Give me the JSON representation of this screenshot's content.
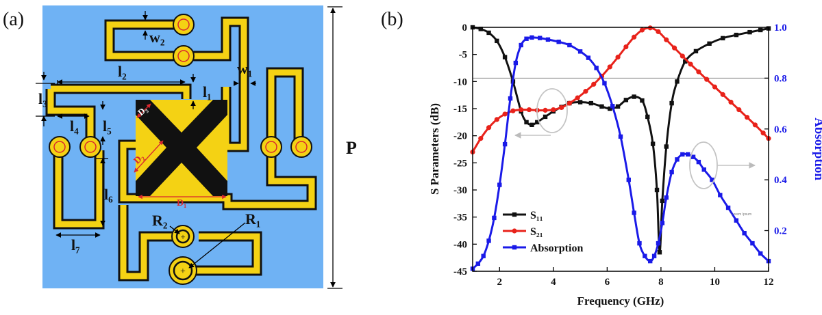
{
  "panel_a": {
    "label": "(a)",
    "dims": {
      "w2": "w₂",
      "w1": "w₁",
      "l1": "l₁",
      "l2": "l₂",
      "l3": "l₃",
      "l4": "l₄",
      "l5": "l₅",
      "l6": "l₆",
      "l7": "l₇",
      "D1": "D₁",
      "D2": "D₂",
      "D3": "D₃",
      "R1": "R₁",
      "R2": "R₂",
      "P": "P"
    },
    "colors": {
      "substrate": "#6fb2f4",
      "copper": "#f4d214",
      "dielectric": "#111111",
      "dim_red": "#d9272e"
    }
  },
  "panel_b": {
    "label": "(b)",
    "watermark": "Lorem Ipsum"
  },
  "chart_data": {
    "type": "line",
    "xlabel": "Frequency (GHz)",
    "ylabel": "S Parameters (dB)",
    "ylabel_right": "Absorption",
    "xlim": [
      1,
      12
    ],
    "ylim": [
      -45,
      0
    ],
    "ylim_right": [
      0.04,
      1.0
    ],
    "x_ticks": [
      2,
      4,
      6,
      8,
      10,
      12
    ],
    "y_ticks": [
      0,
      -5,
      -10,
      -15,
      -20,
      -25,
      -30,
      -35,
      -40,
      -45
    ],
    "y_ticks_right": [
      0.2,
      0.4,
      0.6,
      0.8,
      1.0
    ],
    "reference_line": {
      "axis": "right",
      "value": 0.8
    },
    "series": [
      {
        "name": "S₁₁",
        "axis": "left",
        "color": "#111111",
        "marker": "square",
        "x": [
          1,
          1.3,
          1.6,
          1.9,
          2.2,
          2.5,
          2.8,
          3.0,
          3.2,
          3.4,
          3.7,
          4.0,
          4.3,
          4.6,
          5.0,
          5.4,
          5.8,
          6.1,
          6.4,
          6.7,
          7.0,
          7.3,
          7.5,
          7.7,
          7.85,
          7.95,
          8.05,
          8.2,
          8.4,
          8.6,
          8.9,
          9.3,
          9.8,
          10.3,
          10.8,
          11.3,
          11.7,
          12
        ],
        "values": [
          0,
          -0.3,
          -1.0,
          -2.5,
          -5.5,
          -10,
          -15.5,
          -17.5,
          -18,
          -17.5,
          -16.5,
          -15.5,
          -14.7,
          -14,
          -13.8,
          -14,
          -14.6,
          -15,
          -14.6,
          -13.4,
          -12.8,
          -13.5,
          -16.5,
          -21.5,
          -30,
          -41.5,
          -32,
          -22,
          -14,
          -10,
          -6.3,
          -4.4,
          -3,
          -2,
          -1.4,
          -0.9,
          -0.5,
          -0.2
        ]
      },
      {
        "name": "S₂₁",
        "axis": "left",
        "color": "#e8221a",
        "marker": "circle",
        "x": [
          1,
          1.3,
          1.6,
          1.9,
          2.2,
          2.5,
          2.8,
          3.1,
          3.4,
          3.7,
          4.0,
          4.3,
          4.6,
          4.9,
          5.2,
          5.5,
          5.8,
          6.1,
          6.4,
          6.7,
          7.0,
          7.3,
          7.6,
          7.9,
          8.2,
          8.5,
          8.8,
          9.1,
          9.4,
          9.7,
          10.0,
          10.3,
          10.6,
          10.9,
          11.2,
          11.5,
          11.8,
          12
        ],
        "values": [
          -23,
          -20.5,
          -18.5,
          -17,
          -16,
          -15.4,
          -15.2,
          -15.2,
          -15.3,
          -15.3,
          -15.2,
          -14.8,
          -14,
          -13,
          -11.8,
          -10.5,
          -9,
          -7.3,
          -5.5,
          -3.6,
          -1.8,
          -0.5,
          -0.1,
          -0.8,
          -2.3,
          -3.8,
          -5.3,
          -6.8,
          -8.2,
          -9.6,
          -11,
          -12.4,
          -13.8,
          -15.2,
          -16.6,
          -18,
          -19.5,
          -20.5
        ]
      },
      {
        "name": "Absorption",
        "axis": "right",
        "color": "#1a1ae8",
        "marker": "square",
        "x": [
          1,
          1.2,
          1.4,
          1.6,
          1.8,
          2.0,
          2.2,
          2.4,
          2.6,
          2.8,
          3.0,
          3.2,
          3.5,
          3.8,
          4.2,
          4.6,
          5.0,
          5.3,
          5.6,
          5.9,
          6.2,
          6.5,
          6.8,
          7.0,
          7.2,
          7.4,
          7.6,
          7.75,
          7.9,
          8.05,
          8.2,
          8.4,
          8.6,
          8.8,
          9.0,
          9.2,
          9.4,
          9.6,
          9.9,
          10.2,
          10.5,
          10.8,
          11.1,
          11.4,
          11.7,
          12
        ],
        "values": [
          0.05,
          0.07,
          0.1,
          0.16,
          0.25,
          0.38,
          0.54,
          0.72,
          0.86,
          0.93,
          0.955,
          0.96,
          0.958,
          0.952,
          0.943,
          0.93,
          0.905,
          0.88,
          0.84,
          0.78,
          0.69,
          0.57,
          0.4,
          0.27,
          0.15,
          0.1,
          0.08,
          0.1,
          0.15,
          0.23,
          0.33,
          0.43,
          0.48,
          0.5,
          0.5,
          0.49,
          0.47,
          0.44,
          0.4,
          0.34,
          0.29,
          0.24,
          0.19,
          0.15,
          0.11,
          0.08
        ]
      }
    ],
    "legend": [
      "S₁₁",
      "S₂₁",
      "Absorption"
    ],
    "legend_position": "bottom-left"
  }
}
